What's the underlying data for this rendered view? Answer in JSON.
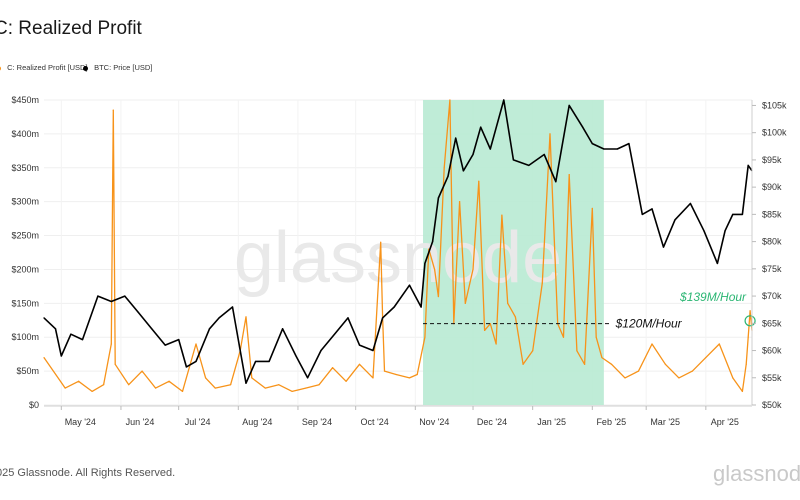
{
  "title": "C: Realized Profit",
  "legend": [
    {
      "label": "C: Realized Profit [USD]",
      "color": "#f7931a"
    },
    {
      "label": "BTC: Price [USD]",
      "color": "#000000"
    }
  ],
  "footer": "025 Glassnode. All Rights Reserved.",
  "footer_logo": "glassnode",
  "watermark": "glassnode",
  "chart_data": {
    "type": "line",
    "x_ticks": [
      "May '24",
      "Jun '24",
      "Jul '24",
      "Aug '24",
      "Sep '24",
      "Oct '24",
      "Nov '24",
      "Dec '24",
      "Jan '25",
      "Feb '25",
      "Mar '25",
      "Apr '25"
    ],
    "y_left_ticks": [
      "$0",
      "$50m",
      "$100m",
      "$150m",
      "$200m",
      "$250m",
      "$300m",
      "$350m",
      "$400m",
      "$450m"
    ],
    "y_left_range": [
      0,
      450
    ],
    "y_right_ticks": [
      "$50k",
      "$55k",
      "$60k",
      "$65k",
      "$70k",
      "$75k",
      "$80k",
      "$85k",
      "$90k",
      "$95k",
      "$100k",
      "$105k"
    ],
    "y_right_range": [
      50,
      106
    ],
    "x_range": [
      "2024-04-22",
      "2025-04-25"
    ],
    "series": [
      {
        "name": "C: Realized Profit [USD]",
        "axis": "left",
        "color": "#f7931a",
        "x": [
          "2024-04-22",
          "2024-05-03",
          "2024-05-10",
          "2024-05-17",
          "2024-05-23",
          "2024-05-27",
          "2024-05-28",
          "2024-05-29",
          "2024-06-05",
          "2024-06-12",
          "2024-06-19",
          "2024-06-26",
          "2024-07-03",
          "2024-07-10",
          "2024-07-15",
          "2024-07-20",
          "2024-07-28",
          "2024-08-02",
          "2024-08-05",
          "2024-08-08",
          "2024-08-15",
          "2024-08-22",
          "2024-08-29",
          "2024-09-05",
          "2024-09-12",
          "2024-09-19",
          "2024-09-26",
          "2024-10-03",
          "2024-10-10",
          "2024-10-14",
          "2024-10-15",
          "2024-10-16",
          "2024-10-22",
          "2024-10-29",
          "2024-11-02",
          "2024-11-06",
          "2024-11-08",
          "2024-11-11",
          "2024-11-13",
          "2024-11-16",
          "2024-11-19",
          "2024-11-21",
          "2024-11-24",
          "2024-11-27",
          "2024-12-01",
          "2024-12-04",
          "2024-12-07",
          "2024-12-10",
          "2024-12-13",
          "2024-12-16",
          "2024-12-19",
          "2024-12-23",
          "2024-12-27",
          "2025-01-01",
          "2025-01-06",
          "2025-01-10",
          "2025-01-14",
          "2025-01-17",
          "2025-01-20",
          "2025-01-24",
          "2025-01-28",
          "2025-02-01",
          "2025-02-03",
          "2025-02-06",
          "2025-02-11",
          "2025-02-18",
          "2025-02-25",
          "2025-03-04",
          "2025-03-11",
          "2025-03-18",
          "2025-03-25",
          "2025-04-01",
          "2025-04-08",
          "2025-04-15",
          "2025-04-20",
          "2025-04-22",
          "2025-04-23",
          "2025-04-24",
          "2025-04-25"
        ],
        "values": [
          70,
          25,
          35,
          20,
          30,
          90,
          435,
          60,
          30,
          50,
          25,
          35,
          20,
          90,
          40,
          25,
          30,
          80,
          130,
          40,
          25,
          30,
          20,
          25,
          30,
          55,
          35,
          60,
          40,
          240,
          130,
          50,
          45,
          40,
          45,
          100,
          230,
          200,
          160,
          350,
          450,
          120,
          300,
          150,
          200,
          330,
          110,
          120,
          90,
          280,
          150,
          130,
          60,
          80,
          180,
          400,
          120,
          100,
          340,
          80,
          60,
          290,
          100,
          70,
          60,
          40,
          50,
          90,
          60,
          40,
          50,
          70,
          90,
          40,
          20,
          60,
          100,
          139,
          110
        ]
      },
      {
        "name": "BTC: Price [USD]",
        "axis": "right",
        "color": "#000000",
        "x": [
          "2024-04-22",
          "2024-04-28",
          "2024-05-01",
          "2024-05-06",
          "2024-05-12",
          "2024-05-20",
          "2024-05-27",
          "2024-06-03",
          "2024-06-10",
          "2024-06-17",
          "2024-06-24",
          "2024-07-01",
          "2024-07-05",
          "2024-07-10",
          "2024-07-17",
          "2024-07-22",
          "2024-07-29",
          "2024-08-05",
          "2024-08-10",
          "2024-08-17",
          "2024-08-24",
          "2024-08-31",
          "2024-09-06",
          "2024-09-13",
          "2024-09-20",
          "2024-09-27",
          "2024-10-03",
          "2024-10-10",
          "2024-10-15",
          "2024-10-21",
          "2024-10-29",
          "2024-11-04",
          "2024-11-06",
          "2024-11-10",
          "2024-11-13",
          "2024-11-18",
          "2024-11-22",
          "2024-11-26",
          "2024-12-01",
          "2024-12-05",
          "2024-12-10",
          "2024-12-17",
          "2024-12-22",
          "2024-12-30",
          "2025-01-07",
          "2025-01-13",
          "2025-01-20",
          "2025-01-27",
          "2025-02-01",
          "2025-02-07",
          "2025-02-14",
          "2025-02-20",
          "2025-02-27",
          "2025-03-04",
          "2025-03-10",
          "2025-03-16",
          "2025-03-24",
          "2025-03-31",
          "2025-04-07",
          "2025-04-11",
          "2025-04-15",
          "2025-04-20",
          "2025-04-23",
          "2025-04-25"
        ],
        "values": [
          66,
          64,
          59,
          63,
          62,
          70,
          69,
          70,
          67,
          64,
          61,
          62,
          57,
          58,
          64,
          66,
          68,
          54,
          58,
          58,
          64,
          59,
          55,
          60,
          63,
          66,
          61,
          60,
          66,
          68,
          72,
          68,
          76,
          80,
          88,
          92,
          99,
          93,
          96,
          101,
          97,
          106,
          95,
          94,
          96,
          91,
          105,
          101,
          98,
          97,
          97,
          98,
          85,
          86,
          79,
          84,
          87,
          82,
          76,
          82,
          85,
          85,
          94,
          93
        ]
      }
    ],
    "annotations": [
      {
        "text": "$120M/Hour",
        "value": 120,
        "color": "#111111"
      },
      {
        "text": "$139M/Hour",
        "value": 139,
        "color": "#2bb673"
      }
    ],
    "highlight_range": [
      "2024-11-05",
      "2025-02-07"
    ],
    "grid": true,
    "legend_position": "top-left"
  }
}
